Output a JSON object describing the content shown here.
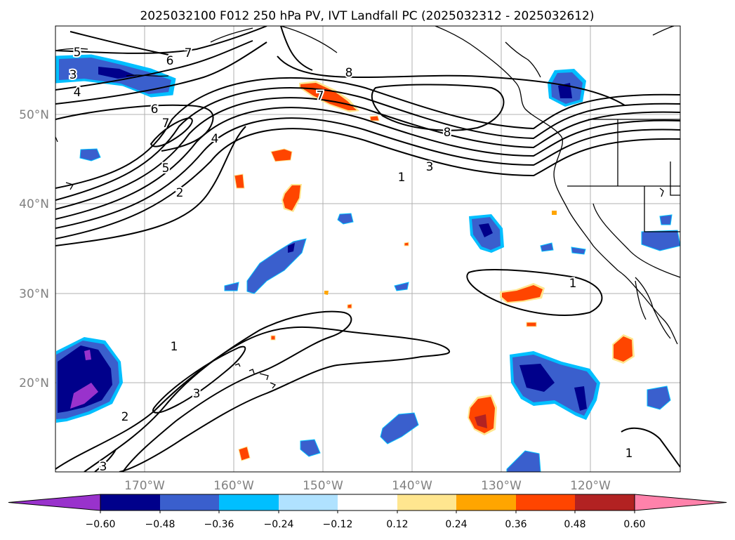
{
  "title": "2025032100 F012 250 hPa PV, IVT Landfall PC (2025032312 - 2025032612)",
  "lat_labels": [
    {
      "text": "50°N",
      "lat": 50
    },
    {
      "text": "40°N",
      "lat": 40
    },
    {
      "text": "30°N",
      "lat": 30
    },
    {
      "text": "20°N",
      "lat": 20
    }
  ],
  "lon_labels": [
    {
      "text": "170°W",
      "lon": -170
    },
    {
      "text": "160°W",
      "lon": -160
    },
    {
      "text": "150°W",
      "lon": -150
    },
    {
      "text": "140°W",
      "lon": -140
    },
    {
      "text": "130°W",
      "lon": -130
    },
    {
      "text": "120°W",
      "lon": -120
    }
  ],
  "extent": {
    "lon_min": -180,
    "lon_max": -110,
    "lat_min": 10,
    "lat_max": 60
  },
  "contour_labels": [
    "5",
    "6",
    "7",
    "3",
    "4",
    "6",
    "7",
    "5",
    "4",
    "2",
    "8",
    "7",
    "8",
    "3",
    "1",
    "1",
    "1",
    "3",
    "2",
    "3",
    "1"
  ],
  "colorbar": {
    "tick_labels": [
      "−0.60",
      "−0.48",
      "−0.36",
      "−0.24",
      "−0.12",
      "0.12",
      "0.24",
      "0.36",
      "0.48",
      "0.60"
    ],
    "colors": [
      "#9932cc",
      "#00008b",
      "#3a5fcd",
      "#00bfff",
      "#b0e2ff",
      "#ffffff",
      "#ffe68f",
      "#ffa500",
      "#ff4500",
      "#b22222",
      "#ff82ab"
    ]
  },
  "colors": {
    "grid": "#b0b0b0",
    "contour": "#000000",
    "coast": "#000000"
  }
}
